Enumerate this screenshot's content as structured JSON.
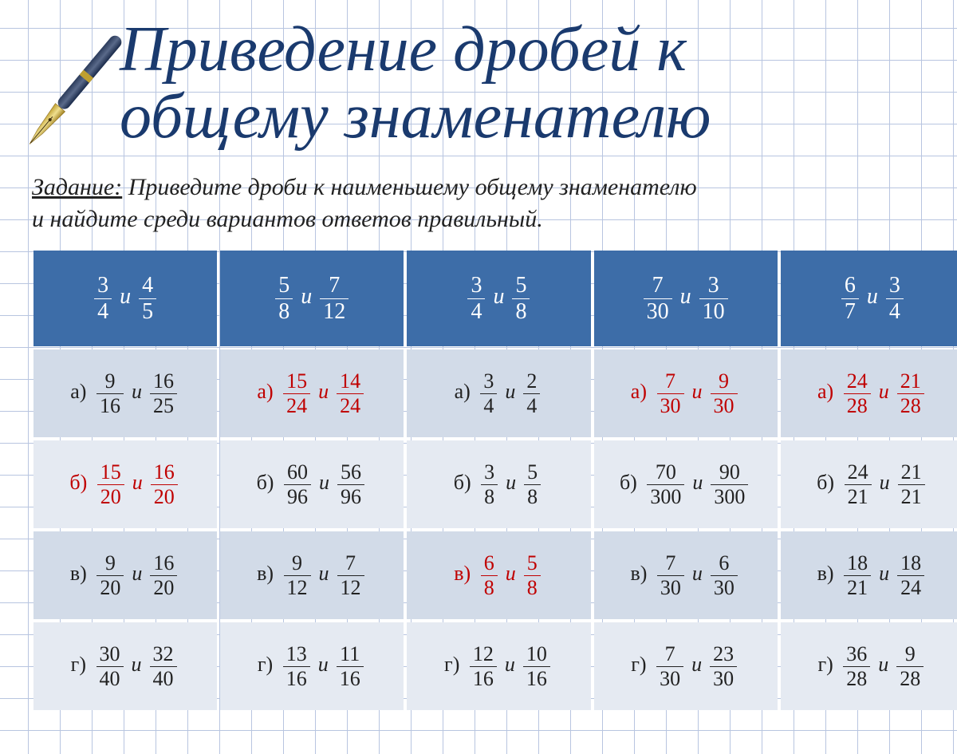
{
  "title_line1": "Приведение дробей к",
  "title_line2": "общему знаменателю",
  "task_label": "Задание:",
  "task_line1": " Приведите дроби к наименьшему общему знаменателю",
  "task_line2": "и найдите среди вариантов ответов правильный.",
  "sep_word": "и",
  "option_labels": [
    "а)",
    "б)",
    "в)",
    "г)"
  ],
  "colors": {
    "title": "#1a3a6e",
    "header_bg": "#3d6da8",
    "row_dark": "#d2dbe8",
    "row_light": "#e5eaf2",
    "correct": "#c00000",
    "grid": "#b8c5e0"
  },
  "columns": [
    {
      "header": [
        [
          3,
          4
        ],
        [
          4,
          5
        ]
      ],
      "options": [
        {
          "f": [
            [
              9,
              16
            ],
            [
              16,
              25
            ]
          ],
          "correct": false
        },
        {
          "f": [
            [
              15,
              20
            ],
            [
              16,
              20
            ]
          ],
          "correct": true
        },
        {
          "f": [
            [
              9,
              20
            ],
            [
              16,
              20
            ]
          ],
          "correct": false
        },
        {
          "f": [
            [
              30,
              40
            ],
            [
              32,
              40
            ]
          ],
          "correct": false
        }
      ]
    },
    {
      "header": [
        [
          5,
          8
        ],
        [
          7,
          12
        ]
      ],
      "options": [
        {
          "f": [
            [
              15,
              24
            ],
            [
              14,
              24
            ]
          ],
          "correct": true
        },
        {
          "f": [
            [
              60,
              96
            ],
            [
              56,
              96
            ]
          ],
          "correct": false
        },
        {
          "f": [
            [
              9,
              12
            ],
            [
              7,
              12
            ]
          ],
          "correct": false
        },
        {
          "f": [
            [
              13,
              16
            ],
            [
              11,
              16
            ]
          ],
          "correct": false
        }
      ]
    },
    {
      "header": [
        [
          3,
          4
        ],
        [
          5,
          8
        ]
      ],
      "options": [
        {
          "f": [
            [
              3,
              4
            ],
            [
              2,
              4
            ]
          ],
          "correct": false
        },
        {
          "f": [
            [
              3,
              8
            ],
            [
              5,
              8
            ]
          ],
          "correct": false
        },
        {
          "f": [
            [
              6,
              8
            ],
            [
              5,
              8
            ]
          ],
          "correct": true
        },
        {
          "f": [
            [
              12,
              16
            ],
            [
              10,
              16
            ]
          ],
          "correct": false
        }
      ]
    },
    {
      "header": [
        [
          7,
          30
        ],
        [
          3,
          10
        ]
      ],
      "options": [
        {
          "f": [
            [
              7,
              30
            ],
            [
              9,
              30
            ]
          ],
          "correct": true
        },
        {
          "f": [
            [
              70,
              300
            ],
            [
              90,
              300
            ]
          ],
          "correct": false
        },
        {
          "f": [
            [
              7,
              30
            ],
            [
              6,
              30
            ]
          ],
          "correct": false
        },
        {
          "f": [
            [
              7,
              30
            ],
            [
              23,
              30
            ]
          ],
          "correct": false
        }
      ]
    },
    {
      "header": [
        [
          6,
          7
        ],
        [
          3,
          4
        ]
      ],
      "options": [
        {
          "f": [
            [
              24,
              28
            ],
            [
              21,
              28
            ]
          ],
          "correct": true
        },
        {
          "f": [
            [
              24,
              21
            ],
            [
              21,
              21
            ]
          ],
          "correct": false
        },
        {
          "f": [
            [
              18,
              21
            ],
            [
              18,
              24
            ]
          ],
          "correct": false
        },
        {
          "f": [
            [
              36,
              28
            ],
            [
              9,
              28
            ]
          ],
          "correct": false
        }
      ]
    }
  ]
}
